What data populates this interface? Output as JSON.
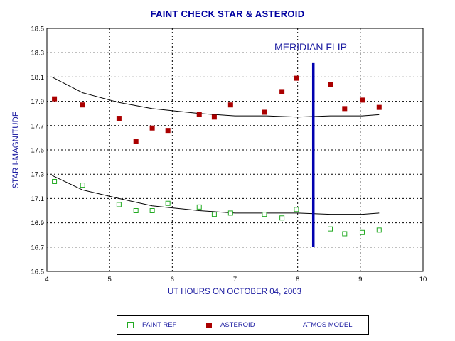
{
  "chart_data": {
    "type": "scatter",
    "title": "FAINT CHECK STAR & ASTEROID",
    "xlabel": "UT HOURS ON OCTOBER 04, 2003",
    "ylabel": "STAR I-MAGNITUDE",
    "xlim": [
      4,
      10
    ],
    "ylim": [
      16.5,
      18.5
    ],
    "x_ticks": [
      "4",
      "5",
      "6",
      "7",
      "8",
      "9",
      "10"
    ],
    "y_ticks": [
      "16.5",
      "16.7",
      "16.9",
      "17.1",
      "17.3",
      "17.5",
      "17.7",
      "17.9",
      "18.1",
      "18.3",
      "18.5"
    ],
    "y_inverted": true,
    "grid": true,
    "legend_position": "bottom",
    "annotation": "MERIDIAN FLIP",
    "meridian_flip": {
      "x": 8.25,
      "y_range": [
        16.7,
        18.22
      ]
    },
    "series": [
      {
        "name": "FAINT REF",
        "marker": "hollow-square",
        "color": "#22aa22",
        "points": [
          [
            4.12,
            17.24
          ],
          [
            4.57,
            17.21
          ],
          [
            5.15,
            17.05
          ],
          [
            5.42,
            17.0
          ],
          [
            5.68,
            17.0
          ],
          [
            5.93,
            17.06
          ],
          [
            6.43,
            17.03
          ],
          [
            6.67,
            16.97
          ],
          [
            6.93,
            16.98
          ],
          [
            7.47,
            16.97
          ],
          [
            7.75,
            16.94
          ],
          [
            7.98,
            17.01
          ],
          [
            8.52,
            16.85
          ],
          [
            8.75,
            16.81
          ],
          [
            9.03,
            16.82
          ],
          [
            9.3,
            16.84
          ]
        ]
      },
      {
        "name": "ASTEROID",
        "marker": "filled-square",
        "color": "#aa0000",
        "points": [
          [
            4.12,
            17.92
          ],
          [
            4.57,
            17.87
          ],
          [
            5.15,
            17.76
          ],
          [
            5.42,
            17.57
          ],
          [
            5.68,
            17.68
          ],
          [
            5.93,
            17.66
          ],
          [
            6.43,
            17.79
          ],
          [
            6.67,
            17.77
          ],
          [
            6.93,
            17.87
          ],
          [
            7.47,
            17.81
          ],
          [
            7.75,
            17.98
          ],
          [
            7.98,
            18.09
          ],
          [
            8.52,
            18.04
          ],
          [
            8.75,
            17.84
          ],
          [
            9.03,
            17.91
          ],
          [
            9.3,
            17.85
          ]
        ]
      },
      {
        "name": "ATMOS MODEL",
        "marker": "line",
        "color": "#000000",
        "curves": [
          [
            [
              4.08,
              18.1
            ],
            [
              4.57,
              17.97
            ],
            [
              5.15,
              17.89
            ],
            [
              5.68,
              17.84
            ],
            [
              6.43,
              17.8
            ],
            [
              7.0,
              17.78
            ],
            [
              7.5,
              17.78
            ],
            [
              8.0,
              17.77
            ],
            [
              8.52,
              17.78
            ],
            [
              9.03,
              17.78
            ],
            [
              9.3,
              17.79
            ]
          ],
          [
            [
              4.08,
              17.29
            ],
            [
              4.57,
              17.17
            ],
            [
              5.15,
              17.1
            ],
            [
              5.68,
              17.04
            ],
            [
              6.43,
              17.0
            ],
            [
              7.0,
              16.98
            ],
            [
              7.5,
              16.98
            ],
            [
              8.0,
              16.98
            ],
            [
              8.52,
              16.97
            ],
            [
              9.03,
              16.97
            ],
            [
              9.3,
              16.98
            ]
          ]
        ]
      }
    ]
  }
}
